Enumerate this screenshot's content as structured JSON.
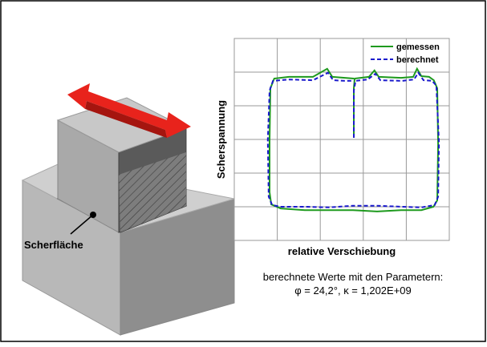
{
  "illustration": {
    "label": "Scherfläche"
  },
  "chart_data": {
    "type": "line",
    "ylabel": "Scherspannung",
    "xlabel": "relative Verschiebung",
    "caption": [
      "berechnete Werte mit den Parametern:",
      "φ = 24,2°, κ = 1,202E+09"
    ],
    "xlim": [
      0,
      5
    ],
    "ylim": [
      0,
      6
    ],
    "xticks": [
      1,
      2,
      3,
      4
    ],
    "yticks": [
      1,
      2,
      3,
      4,
      5
    ],
    "grid": true,
    "legend": "upper right",
    "series": [
      {
        "name": "gemessen",
        "color": "#1e9a1e",
        "dash": false,
        "x": [
          2.78,
          2.78,
          2.8,
          3.13,
          3.26,
          3.36,
          3.88,
          4.16,
          4.25,
          4.35,
          4.53,
          4.64,
          4.72,
          4.74,
          4.72,
          4.63,
          4.35,
          3.88,
          3.32,
          2.76,
          2.2,
          1.64,
          1.08,
          0.86,
          0.82,
          0.82,
          0.84,
          0.93,
          1.27,
          1.83,
          2.16,
          2.28,
          2.57,
          2.78
        ],
        "values": [
          3.05,
          4.52,
          4.81,
          4.86,
          5.05,
          4.86,
          4.83,
          4.86,
          5.1,
          4.88,
          4.86,
          4.76,
          4.52,
          2.86,
          1.19,
          1.0,
          0.9,
          0.9,
          0.86,
          0.9,
          0.9,
          0.9,
          0.95,
          1.07,
          1.43,
          2.98,
          4.52,
          4.81,
          4.86,
          4.86,
          5.1,
          4.86,
          4.83,
          4.81
        ]
      },
      {
        "name": "berechnet",
        "color": "#1a1acc",
        "dash": true,
        "x": [
          2.78,
          2.78,
          2.82,
          3.1,
          3.28,
          3.4,
          3.9,
          4.18,
          4.28,
          4.4,
          4.6,
          4.7,
          4.76,
          4.74,
          4.66,
          4.35,
          3.9,
          3.32,
          2.76,
          2.2,
          1.64,
          1.08,
          0.88,
          0.8,
          0.78,
          0.82,
          0.9,
          1.27,
          1.83,
          2.18,
          2.3,
          2.57,
          2.78
        ],
        "values": [
          3.05,
          4.45,
          4.74,
          4.78,
          4.95,
          4.76,
          4.74,
          4.78,
          4.98,
          4.76,
          4.74,
          4.6,
          2.9,
          1.3,
          1.05,
          0.98,
          1.0,
          1.03,
          1.03,
          0.98,
          1.0,
          1.0,
          1.05,
          1.3,
          2.98,
          4.45,
          4.74,
          4.78,
          4.76,
          4.98,
          4.76,
          4.74,
          4.74
        ]
      }
    ]
  }
}
